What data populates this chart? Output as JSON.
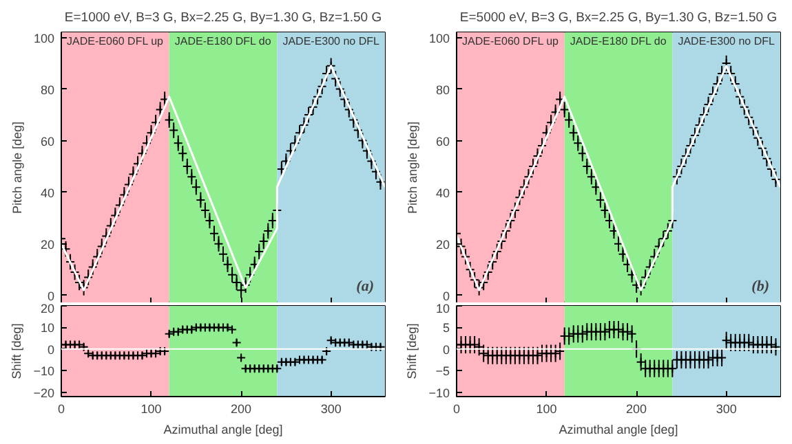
{
  "chart_data": [
    {
      "type": "scatter",
      "title": "E=1000 eV, B=3 G, Bx=2.25 G, By=1.30 G, Bz=1.50 G",
      "ylabel": "Pitch angle [deg]",
      "xlim": [
        0,
        360
      ],
      "xticks": [
        0,
        100,
        200,
        300
      ],
      "ylim": [
        -3,
        102
      ],
      "yticks": [
        0,
        20,
        40,
        60,
        80,
        100
      ],
      "tick_labels": "y",
      "marker": "cross",
      "annotations": [
        "(a)"
      ],
      "bands": [
        {
          "axis": "x",
          "from": 0,
          "to": 120,
          "label": "JADE-E060 DFL up",
          "color": "#ffb6c1"
        },
        {
          "axis": "x",
          "from": 120,
          "to": 240,
          "label": "JADE-E180 DFL do",
          "color": "#90ee90"
        },
        {
          "axis": "x",
          "from": 240,
          "to": 360,
          "label": "JADE-E300 no DFL",
          "color": "#add8e6"
        }
      ],
      "x": [
        0,
        5,
        10,
        15,
        20,
        25,
        30,
        35,
        40,
        45,
        50,
        55,
        60,
        65,
        70,
        75,
        80,
        85,
        90,
        95,
        100,
        105,
        110,
        115,
        120,
        125,
        130,
        135,
        140,
        145,
        150,
        155,
        160,
        165,
        170,
        175,
        180,
        185,
        190,
        195,
        200,
        205,
        210,
        215,
        220,
        225,
        230,
        235,
        240,
        245,
        250,
        255,
        260,
        265,
        270,
        275,
        280,
        285,
        290,
        295,
        300,
        305,
        310,
        315,
        320,
        325,
        330,
        335,
        340,
        345,
        350,
        355
      ],
      "series": [
        {
          "color": "#000000",
          "values": [
            22,
            18,
            13,
            9,
            5,
            3,
            7,
            11,
            15,
            19,
            23,
            27,
            31,
            35,
            39,
            43,
            47,
            51,
            55,
            59,
            63,
            67,
            72,
            76,
            68,
            64,
            59,
            55,
            50,
            46,
            42,
            37,
            33,
            29,
            24,
            20,
            16,
            12,
            8,
            5,
            2,
            4,
            8,
            12,
            17,
            21,
            25,
            29,
            33,
            49,
            52,
            56,
            59,
            63,
            66,
            70,
            73,
            77,
            81,
            86,
            89,
            84,
            80,
            76,
            72,
            68,
            64,
            60,
            56,
            52,
            48,
            44
          ],
          "errors": [
            3,
            3,
            3,
            3,
            3,
            3,
            3,
            3,
            3,
            3,
            3,
            3,
            3,
            3,
            3,
            3,
            3,
            3,
            3,
            3,
            3,
            3,
            3,
            3,
            3,
            3,
            3,
            3,
            3,
            3,
            3,
            3,
            3,
            3,
            3,
            3,
            3,
            3,
            3,
            3,
            3,
            3,
            3,
            3,
            3,
            3,
            3,
            3,
            3,
            3,
            3,
            3,
            3,
            3,
            3,
            3,
            3,
            3,
            3,
            3,
            3,
            3,
            3,
            3,
            3,
            3,
            3,
            3,
            3,
            3,
            3,
            3
          ]
        },
        {
          "type": "line",
          "marker": "none",
          "color": "#ffffff",
          "x": [
            0,
            25,
            120,
            205,
            240,
            240,
            300,
            360
          ],
          "values": [
            20,
            2,
            77,
            3,
            26,
            42,
            89,
            42
          ]
        }
      ]
    },
    {
      "type": "scatter",
      "title": "E=5000 eV, B=3 G, Bx=2.25 G, By=1.30 G, Bz=1.50 G",
      "ylabel": "Pitch angle [deg]",
      "xlim": [
        0,
        360
      ],
      "xticks": [
        0,
        100,
        200,
        300
      ],
      "ylim": [
        -3,
        102
      ],
      "yticks": [
        0,
        20,
        40,
        60,
        80,
        100
      ],
      "tick_labels": "y",
      "marker": "cross",
      "annotations": [
        "(b)"
      ],
      "bands": [
        {
          "axis": "x",
          "from": 0,
          "to": 120,
          "label": "JADE-E060 DFL up",
          "color": "#ffb6c1"
        },
        {
          "axis": "x",
          "from": 120,
          "to": 240,
          "label": "JADE-E180 DFL do",
          "color": "#90ee90"
        },
        {
          "axis": "x",
          "from": 240,
          "to": 360,
          "label": "JADE-E300 no DFL",
          "color": "#add8e6"
        }
      ],
      "x": [
        0,
        5,
        10,
        15,
        20,
        25,
        30,
        35,
        40,
        45,
        50,
        55,
        60,
        65,
        70,
        75,
        80,
        85,
        90,
        95,
        100,
        105,
        110,
        115,
        120,
        125,
        130,
        135,
        140,
        145,
        150,
        155,
        160,
        165,
        170,
        175,
        180,
        185,
        190,
        195,
        200,
        205,
        210,
        215,
        220,
        225,
        230,
        235,
        240,
        245,
        250,
        255,
        260,
        265,
        270,
        275,
        280,
        285,
        290,
        295,
        300,
        305,
        310,
        315,
        320,
        325,
        330,
        335,
        340,
        345,
        350,
        355
      ],
      "series": [
        {
          "color": "#000000",
          "values": [
            24,
            19,
            15,
            10,
            6,
            3,
            5,
            9,
            13,
            17,
            21,
            25,
            29,
            33,
            38,
            42,
            46,
            50,
            54,
            58,
            63,
            67,
            71,
            76,
            72,
            68,
            63,
            59,
            55,
            50,
            46,
            42,
            37,
            33,
            29,
            25,
            20,
            16,
            12,
            8,
            4,
            3,
            7,
            11,
            15,
            19,
            22,
            25,
            29,
            46,
            50,
            54,
            58,
            62,
            66,
            70,
            74,
            78,
            82,
            86,
            90,
            86,
            82,
            77,
            73,
            69,
            65,
            61,
            57,
            53,
            49,
            45
          ],
          "errors": [
            3,
            3,
            3,
            3,
            3,
            3,
            3,
            3,
            3,
            3,
            3,
            3,
            3,
            3,
            3,
            3,
            3,
            3,
            3,
            3,
            3,
            3,
            3,
            3,
            3,
            3,
            3,
            3,
            3,
            3,
            3,
            3,
            3,
            3,
            3,
            3,
            3,
            3,
            3,
            3,
            3,
            3,
            3,
            3,
            3,
            3,
            3,
            3,
            3,
            3,
            3,
            3,
            3,
            3,
            3,
            3,
            3,
            3,
            3,
            3,
            3,
            3,
            3,
            3,
            3,
            3,
            3,
            3,
            3,
            3,
            3,
            3
          ]
        },
        {
          "type": "line",
          "marker": "none",
          "color": "#ffffff",
          "x": [
            0,
            25,
            120,
            205,
            240,
            240,
            300,
            360
          ],
          "values": [
            23,
            2,
            77,
            2,
            29,
            42,
            89,
            42
          ]
        }
      ]
    },
    {
      "type": "scatter",
      "xlabel": "Azimuthal angle [deg]",
      "ylabel": "Shift [deg]",
      "xlim": [
        0,
        360
      ],
      "xticks": [
        0,
        100,
        200,
        300
      ],
      "ylim": [
        -22,
        20
      ],
      "yticks": [
        -20,
        -10,
        0,
        10,
        20
      ],
      "marker": "cross",
      "bands": [
        {
          "axis": "x",
          "from": 0,
          "to": 120,
          "color": "#ffb6c1"
        },
        {
          "axis": "x",
          "from": 120,
          "to": 240,
          "color": "#90ee90"
        },
        {
          "axis": "x",
          "from": 240,
          "to": 360,
          "color": "#add8e6"
        }
      ],
      "ref_lines": [
        {
          "axis": "y",
          "value": 0,
          "color": "#ffffff"
        }
      ],
      "x": [
        0,
        5,
        10,
        15,
        20,
        25,
        30,
        35,
        40,
        45,
        50,
        55,
        60,
        65,
        70,
        75,
        80,
        85,
        90,
        95,
        100,
        105,
        110,
        115,
        120,
        125,
        130,
        135,
        140,
        145,
        150,
        155,
        160,
        165,
        170,
        175,
        180,
        185,
        190,
        195,
        200,
        205,
        210,
        215,
        220,
        225,
        230,
        235,
        240,
        245,
        250,
        255,
        260,
        265,
        270,
        275,
        280,
        285,
        290,
        295,
        300,
        305,
        310,
        315,
        320,
        325,
        330,
        335,
        340,
        345,
        350,
        355
      ],
      "series": [
        {
          "color": "#000000",
          "values": [
            2,
            2,
            2,
            2,
            2,
            1,
            -2,
            -3,
            -3,
            -3,
            -3,
            -3,
            -3,
            -3,
            -3,
            -3,
            -3,
            -3,
            -3,
            -2,
            -2,
            -2,
            -1,
            -1,
            7,
            8,
            8,
            9,
            9,
            9,
            10,
            10,
            10,
            10,
            10,
            10,
            10,
            10,
            9,
            3,
            -4,
            -9,
            -9,
            -9,
            -9,
            -9,
            -9,
            -9,
            -9,
            -6,
            -6,
            -6,
            -6,
            -5,
            -5,
            -5,
            -5,
            -5,
            -5,
            -1,
            4,
            3,
            3,
            3,
            3,
            2,
            2,
            2,
            2,
            1,
            1,
            1
          ],
          "errors": [
            1.5,
            1.5,
            1.5,
            1.5,
            1.5,
            1.5,
            1.5,
            1.5,
            1.5,
            1.5,
            1.5,
            1.5,
            1.5,
            1.5,
            1.5,
            1.5,
            1.5,
            1.5,
            1.5,
            1.5,
            1.5,
            1.5,
            1.5,
            1.5,
            1.5,
            1.5,
            1.5,
            1.5,
            1.5,
            1.5,
            1.5,
            1.5,
            1.5,
            1.5,
            1.5,
            1.5,
            1.5,
            1.5,
            1.5,
            1.5,
            1.5,
            1.5,
            1.5,
            1.5,
            1.5,
            1.5,
            1.5,
            1.5,
            1.5,
            1.5,
            1.5,
            1.5,
            1.5,
            1.5,
            1.5,
            1.5,
            1.5,
            1.5,
            1.5,
            1.5,
            1.5,
            1.5,
            1.5,
            1.5,
            1.5,
            1.5,
            1.5,
            1.5,
            1.5,
            1.5,
            1.5,
            1.5
          ]
        }
      ]
    },
    {
      "type": "scatter",
      "xlabel": "Azimuthal angle [deg]",
      "ylabel": "Shift [deg]",
      "xlim": [
        0,
        360
      ],
      "xticks": [
        0,
        100,
        200,
        300
      ],
      "ylim": [
        -11,
        10
      ],
      "yticks": [
        -10,
        -5,
        0,
        5,
        10
      ],
      "marker": "cross",
      "bands": [
        {
          "axis": "x",
          "from": 0,
          "to": 120,
          "color": "#ffb6c1"
        },
        {
          "axis": "x",
          "from": 120,
          "to": 240,
          "color": "#90ee90"
        },
        {
          "axis": "x",
          "from": 240,
          "to": 360,
          "color": "#add8e6"
        }
      ],
      "ref_lines": [
        {
          "axis": "y",
          "value": 0,
          "color": "#ffffff"
        }
      ],
      "x": [
        0,
        5,
        10,
        15,
        20,
        25,
        30,
        35,
        40,
        45,
        50,
        55,
        60,
        65,
        70,
        75,
        80,
        85,
        90,
        95,
        100,
        105,
        110,
        115,
        120,
        125,
        130,
        135,
        140,
        145,
        150,
        155,
        160,
        165,
        170,
        175,
        180,
        185,
        190,
        195,
        200,
        205,
        210,
        215,
        220,
        225,
        230,
        235,
        240,
        245,
        250,
        255,
        260,
        265,
        270,
        275,
        280,
        285,
        290,
        295,
        300,
        305,
        310,
        315,
        320,
        325,
        330,
        335,
        340,
        345,
        350,
        355
      ],
      "series": [
        {
          "color": "#000000",
          "values": [
            1,
            1,
            1,
            1,
            1,
            0.5,
            -1,
            -1.5,
            -1.5,
            -1.5,
            -1.5,
            -1.5,
            -1.5,
            -1.5,
            -1.5,
            -1.5,
            -1.5,
            -1.5,
            -1.5,
            -1,
            -1,
            -1,
            -1,
            -0.5,
            3,
            3,
            3.5,
            3.5,
            3.5,
            4,
            4,
            4,
            4,
            4,
            4.5,
            4.5,
            4.5,
            4,
            4,
            3.5,
            0,
            -3,
            -4.5,
            -4.5,
            -4.5,
            -4.5,
            -4.5,
            -4.5,
            -4.5,
            -2.5,
            -2.5,
            -2.5,
            -2.5,
            -2.5,
            -2.5,
            -2.5,
            -2.5,
            -2,
            -2,
            -2,
            2,
            1.5,
            1.5,
            1.5,
            1.5,
            1.5,
            1,
            1,
            1,
            1,
            1,
            0.5
          ],
          "errors": [
            2,
            2,
            2,
            2,
            2,
            2,
            2,
            2,
            2,
            2,
            2,
            2,
            2,
            2,
            2,
            2,
            2,
            2,
            2,
            2,
            2,
            2,
            2,
            2,
            2,
            2,
            2,
            2,
            2,
            2,
            2,
            2,
            2,
            2,
            2,
            2,
            2,
            2,
            2,
            2,
            2,
            2,
            2,
            2,
            2,
            2,
            2,
            2,
            2,
            2,
            2,
            2,
            2,
            2,
            2,
            2,
            2,
            2,
            2,
            2,
            2,
            2,
            2,
            2,
            2,
            2,
            2,
            2,
            2,
            2,
            2,
            2
          ]
        }
      ]
    }
  ]
}
